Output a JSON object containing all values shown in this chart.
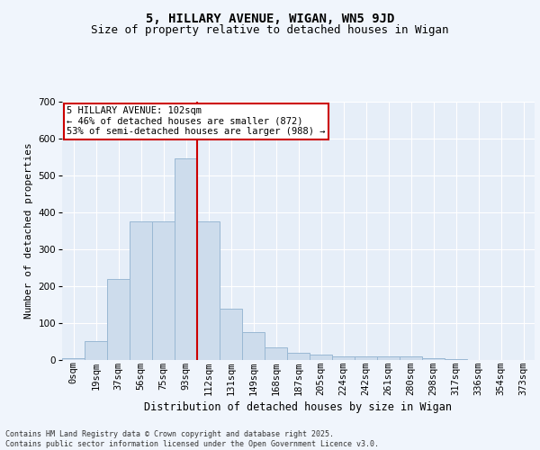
{
  "title1": "5, HILLARY AVENUE, WIGAN, WN5 9JD",
  "title2": "Size of property relative to detached houses in Wigan",
  "xlabel": "Distribution of detached houses by size in Wigan",
  "ylabel": "Number of detached properties",
  "bar_labels": [
    "0sqm",
    "19sqm",
    "37sqm",
    "56sqm",
    "75sqm",
    "93sqm",
    "112sqm",
    "131sqm",
    "149sqm",
    "168sqm",
    "187sqm",
    "205sqm",
    "224sqm",
    "242sqm",
    "261sqm",
    "280sqm",
    "298sqm",
    "317sqm",
    "336sqm",
    "354sqm",
    "373sqm"
  ],
  "bar_values": [
    5,
    50,
    220,
    375,
    375,
    545,
    375,
    140,
    75,
    35,
    20,
    15,
    10,
    10,
    10,
    10,
    5,
    2,
    1,
    0,
    0
  ],
  "bar_color": "#cddcec",
  "bar_edge_color": "#9ab8d4",
  "vline_color": "#cc0000",
  "vline_pos": 6,
  "annotation_text": "5 HILLARY AVENUE: 102sqm\n← 46% of detached houses are smaller (872)\n53% of semi-detached houses are larger (988) →",
  "annotation_box_facecolor": "#ffffff",
  "annotation_box_edgecolor": "#cc0000",
  "fig_facecolor": "#f0f5fc",
  "plot_facecolor": "#e6eef8",
  "footer": "Contains HM Land Registry data © Crown copyright and database right 2025.\nContains public sector information licensed under the Open Government Licence v3.0.",
  "ylim": [
    0,
    700
  ],
  "yticks": [
    0,
    100,
    200,
    300,
    400,
    500,
    600,
    700
  ],
  "grid_color": "#ffffff",
  "title1_fontsize": 10,
  "title2_fontsize": 9,
  "xlabel_fontsize": 8.5,
  "ylabel_fontsize": 8,
  "tick_fontsize": 7.5,
  "annot_fontsize": 7.5,
  "footer_fontsize": 6
}
